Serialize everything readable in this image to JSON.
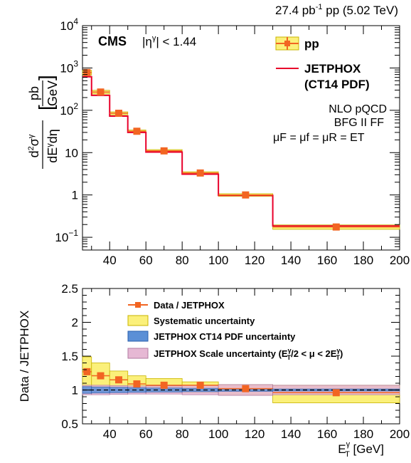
{
  "header": {
    "lumi_label": "27.4 pb",
    "lumi_sup": "-1",
    "lumi_rest": " pp (5.02 TeV)"
  },
  "colors": {
    "data": "#f26522",
    "theory": "#e8002a",
    "syst_fill": "#fbf07a",
    "syst_edge": "#c8b400",
    "pdf_fill": "#5b8fd6",
    "pdf_edge": "#2a5fae",
    "scale_fill": "#e6b8d4",
    "scale_edge": "#b07aa0"
  },
  "chart_data": [
    {
      "type": "line",
      "panel": "top",
      "xlim": [
        25,
        200
      ],
      "ylim": [
        0.05,
        10000
      ],
      "yscale": "log",
      "x_ticks": [
        40,
        60,
        80,
        100,
        120,
        140,
        160,
        180,
        200
      ],
      "y_ticks": [
        {
          "value": 0.1,
          "base": "10",
          "exp": "−1"
        },
        {
          "value": 1,
          "base": "1",
          "exp": ""
        },
        {
          "value": 10,
          "base": "10",
          "exp": ""
        },
        {
          "value": 100,
          "base": "10",
          "exp": "2"
        },
        {
          "value": 1000,
          "base": "10",
          "exp": "3"
        },
        {
          "value": 10000,
          "base": "10",
          "exp": "4"
        }
      ],
      "ylabel": {
        "num": "d²σ",
        "den": "dE",
        "units_num": "pb",
        "units_den": "GeV"
      },
      "labels": {
        "experiment": "CMS",
        "eta_cut": "|η",
        "eta_sup": "γ",
        "eta_rest": "| < 1.44",
        "legend_pp": "pp",
        "legend_jetphox": "JETPHOX",
        "legend_pdf": "(CT14 PDF)",
        "nlo": "NLO pQCD",
        "ff": "BFG II FF",
        "scale_def": "μF = μf = μR = ET"
      },
      "bin_edges": [
        25,
        30,
        40,
        50,
        60,
        80,
        100,
        130,
        200
      ],
      "series": [
        {
          "name": "pp",
          "x": [
            27.5,
            35,
            45,
            55,
            70,
            90,
            115,
            165
          ],
          "y": [
            780,
            270,
            85,
            32,
            11,
            3.3,
            1.0,
            0.175
          ],
          "syst_rel": [
            0.13,
            0.1,
            0.08,
            0.07,
            0.07,
            0.07,
            0.07,
            0.12
          ]
        },
        {
          "name": "JETPHOX",
          "y": [
            620,
            225,
            73,
            30,
            10.3,
            3.1,
            0.98,
            0.185
          ]
        }
      ]
    },
    {
      "type": "line",
      "panel": "bottom",
      "xlim": [
        25,
        200
      ],
      "ylim": [
        0.5,
        2.5
      ],
      "x_ticks": [
        40,
        60,
        80,
        100,
        120,
        140,
        160,
        180,
        200
      ],
      "y_ticks": [
        0.5,
        1,
        1.5,
        2,
        2.5
      ],
      "xlabel": {
        "main": "E",
        "sub": "T",
        "sup": "γ",
        "unit": " [GeV]"
      },
      "ylabel": "Data / JETPHOX",
      "legend": [
        "Data / JETPHOX",
        "Systematic uncertainty",
        "JETPHOX CT14 PDF uncertainty",
        "JETPHOX Scale uncertainty (E"
      ],
      "bin_edges": [
        25,
        30,
        40,
        50,
        60,
        80,
        100,
        130,
        200
      ],
      "series": [
        {
          "name": "Data / JETPHOX",
          "x": [
            27.5,
            35,
            45,
            55,
            70,
            90,
            115,
            165
          ],
          "y": [
            1.27,
            1.21,
            1.15,
            1.09,
            1.07,
            1.07,
            1.02,
            0.96
          ],
          "syst_lo": [
            1.06,
            1.04,
            1.03,
            0.99,
            0.97,
            0.96,
            0.93,
            0.81
          ],
          "syst_hi": [
            1.49,
            1.4,
            1.28,
            1.21,
            1.17,
            1.12,
            1.08,
            1.07
          ]
        },
        {
          "name": "JETPHOX CT14 PDF uncertainty",
          "lo": [
            0.95,
            0.955,
            0.96,
            0.965,
            0.97,
            0.975,
            0.98,
            0.985
          ],
          "hi": [
            1.05,
            1.045,
            1.04,
            1.035,
            1.03,
            1.025,
            1.02,
            1.015
          ]
        },
        {
          "name": "JETPHOX Scale uncertainty",
          "lo": [
            0.93,
            0.93,
            0.935,
            0.94,
            0.94,
            0.93,
            0.92,
            0.93
          ],
          "hi": [
            1.07,
            1.07,
            1.065,
            1.06,
            1.06,
            1.07,
            1.08,
            1.07
          ]
        }
      ]
    }
  ]
}
